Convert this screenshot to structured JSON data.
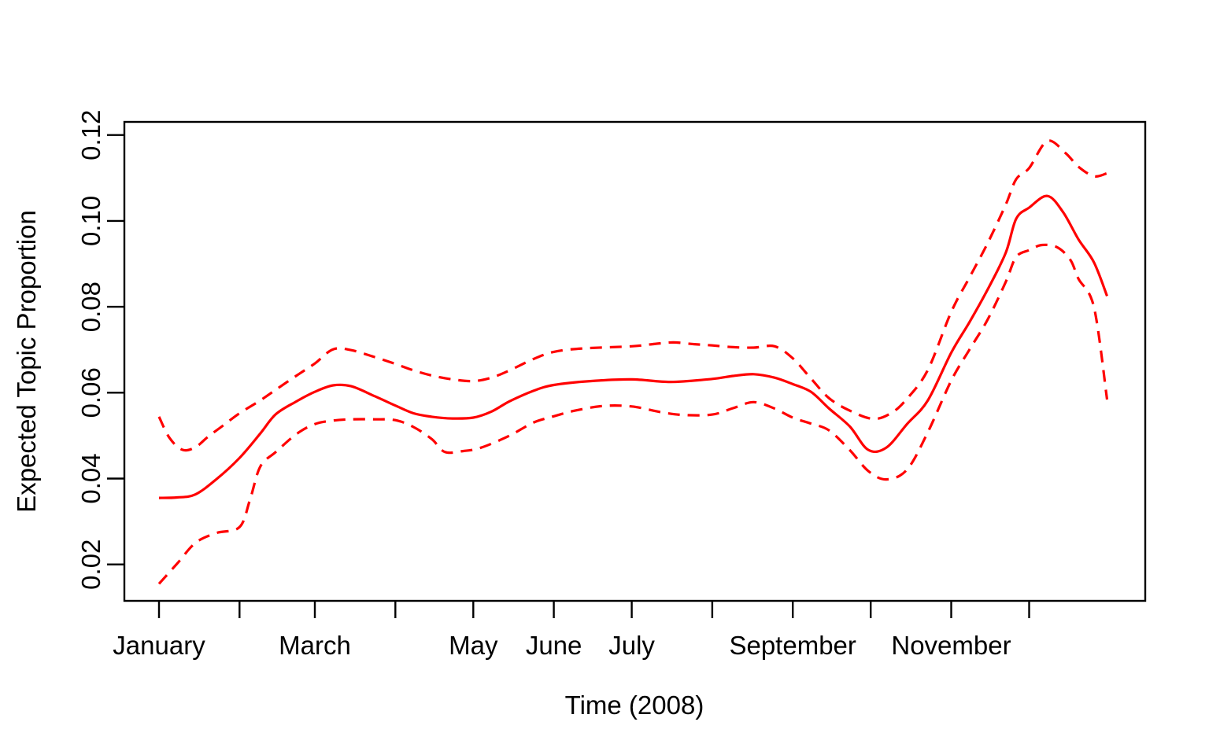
{
  "figure": {
    "background": "#ffffff",
    "axis_color": "#000000",
    "line_color": "#ff0000"
  },
  "chart_data": {
    "type": "line",
    "title": "",
    "xlabel": "Time (2008)",
    "ylabel": "Expected Topic Proportion",
    "x_unit": "day of year 2008",
    "x_range_days": [
      1,
      366
    ],
    "ylim": [
      0.0115,
      0.1227
    ],
    "grid": false,
    "legend": "none",
    "y_ticks": [
      0.02,
      0.04,
      0.06,
      0.08,
      0.1,
      0.12
    ],
    "y_tick_labels": [
      "0.02",
      "0.04",
      "0.06",
      "0.08",
      "0.10",
      "0.12"
    ],
    "x_ticks": [
      {
        "day": 1,
        "label": "January"
      },
      {
        "day": 32,
        "label": ""
      },
      {
        "day": 61,
        "label": "March"
      },
      {
        "day": 92,
        "label": ""
      },
      {
        "day": 122,
        "label": "May"
      },
      {
        "day": 153,
        "label": "June"
      },
      {
        "day": 183,
        "label": "July"
      },
      {
        "day": 214,
        "label": ""
      },
      {
        "day": 245,
        "label": "September"
      },
      {
        "day": 275,
        "label": ""
      },
      {
        "day": 306,
        "label": "November"
      },
      {
        "day": 336,
        "label": ""
      }
    ],
    "series": [
      {
        "name": "expected-topic-proportion-mean",
        "style": "solid",
        "color": "#ff0000",
        "points": [
          [
            1,
            0.0355
          ],
          [
            8,
            0.0356
          ],
          [
            15,
            0.0363
          ],
          [
            23,
            0.0398
          ],
          [
            32,
            0.0448
          ],
          [
            40,
            0.0505
          ],
          [
            46,
            0.055
          ],
          [
            54,
            0.058
          ],
          [
            61,
            0.0602
          ],
          [
            68,
            0.0617
          ],
          [
            75,
            0.0615
          ],
          [
            84,
            0.0592
          ],
          [
            92,
            0.057
          ],
          [
            99,
            0.0552
          ],
          [
            106,
            0.0544
          ],
          [
            114,
            0.054
          ],
          [
            122,
            0.0542
          ],
          [
            129,
            0.0556
          ],
          [
            136,
            0.058
          ],
          [
            145,
            0.0604
          ],
          [
            153,
            0.0618
          ],
          [
            167,
            0.0627
          ],
          [
            183,
            0.0631
          ],
          [
            198,
            0.0625
          ],
          [
            214,
            0.0632
          ],
          [
            222,
            0.0639
          ],
          [
            230,
            0.0643
          ],
          [
            238,
            0.0635
          ],
          [
            245,
            0.062
          ],
          [
            252,
            0.0602
          ],
          [
            259,
            0.0563
          ],
          [
            267,
            0.0521
          ],
          [
            274,
            0.0467
          ],
          [
            281,
            0.0472
          ],
          [
            289,
            0.0527
          ],
          [
            297,
            0.0582
          ],
          [
            306,
            0.0693
          ],
          [
            313,
            0.0764
          ],
          [
            320,
            0.084
          ],
          [
            327,
            0.0926
          ],
          [
            331,
            0.1005
          ],
          [
            336,
            0.1031
          ],
          [
            343,
            0.1058
          ],
          [
            349,
            0.1021
          ],
          [
            355,
            0.0957
          ],
          [
            361,
            0.0903
          ],
          [
            366,
            0.0825
          ]
        ]
      },
      {
        "name": "upper-confidence-band",
        "style": "dashed",
        "color": "#ff0000",
        "points": [
          [
            1,
            0.0544
          ],
          [
            5,
            0.0495
          ],
          [
            10,
            0.0467
          ],
          [
            15,
            0.0473
          ],
          [
            20,
            0.0498
          ],
          [
            26,
            0.0525
          ],
          [
            32,
            0.0552
          ],
          [
            40,
            0.0582
          ],
          [
            46,
            0.0607
          ],
          [
            54,
            0.064
          ],
          [
            61,
            0.0668
          ],
          [
            68,
            0.0701
          ],
          [
            75,
            0.0699
          ],
          [
            84,
            0.0683
          ],
          [
            92,
            0.0667
          ],
          [
            99,
            0.0652
          ],
          [
            106,
            0.064
          ],
          [
            114,
            0.0631
          ],
          [
            122,
            0.0627
          ],
          [
            129,
            0.0635
          ],
          [
            136,
            0.0652
          ],
          [
            145,
            0.0678
          ],
          [
            153,
            0.0695
          ],
          [
            164,
            0.0703
          ],
          [
            183,
            0.0708
          ],
          [
            191,
            0.0713
          ],
          [
            199,
            0.0717
          ],
          [
            207,
            0.0713
          ],
          [
            214,
            0.071
          ],
          [
            222,
            0.0706
          ],
          [
            230,
            0.0705
          ],
          [
            238,
            0.0708
          ],
          [
            245,
            0.068
          ],
          [
            252,
            0.0633
          ],
          [
            259,
            0.0587
          ],
          [
            267,
            0.0558
          ],
          [
            276,
            0.0539
          ],
          [
            283,
            0.0553
          ],
          [
            289,
            0.0586
          ],
          [
            297,
            0.0653
          ],
          [
            306,
            0.0788
          ],
          [
            313,
            0.0868
          ],
          [
            320,
            0.0948
          ],
          [
            327,
            0.1038
          ],
          [
            331,
            0.1097
          ],
          [
            336,
            0.1123
          ],
          [
            343,
            0.1186
          ],
          [
            350,
            0.1158
          ],
          [
            355,
            0.1126
          ],
          [
            361,
            0.1104
          ],
          [
            366,
            0.1111
          ]
        ]
      },
      {
        "name": "lower-confidence-band",
        "style": "dashed",
        "color": "#ff0000",
        "points": [
          [
            1,
            0.0155
          ],
          [
            8,
            0.0202
          ],
          [
            15,
            0.025
          ],
          [
            23,
            0.0273
          ],
          [
            32,
            0.0287
          ],
          [
            36,
            0.035
          ],
          [
            40,
            0.0428
          ],
          [
            46,
            0.0462
          ],
          [
            54,
            0.0504
          ],
          [
            61,
            0.0527
          ],
          [
            68,
            0.0535
          ],
          [
            75,
            0.0538
          ],
          [
            84,
            0.0538
          ],
          [
            92,
            0.0536
          ],
          [
            99,
            0.052
          ],
          [
            106,
            0.0492
          ],
          [
            111,
            0.0462
          ],
          [
            118,
            0.0464
          ],
          [
            125,
            0.0472
          ],
          [
            136,
            0.05
          ],
          [
            145,
            0.053
          ],
          [
            153,
            0.0545
          ],
          [
            161,
            0.0558
          ],
          [
            172,
            0.0569
          ],
          [
            183,
            0.0568
          ],
          [
            194,
            0.0555
          ],
          [
            203,
            0.0548
          ],
          [
            214,
            0.0549
          ],
          [
            222,
            0.0564
          ],
          [
            230,
            0.0578
          ],
          [
            238,
            0.0563
          ],
          [
            245,
            0.0542
          ],
          [
            252,
            0.0528
          ],
          [
            259,
            0.0512
          ],
          [
            267,
            0.0466
          ],
          [
            274,
            0.0418
          ],
          [
            281,
            0.0398
          ],
          [
            289,
            0.0421
          ],
          [
            297,
            0.0508
          ],
          [
            306,
            0.0628
          ],
          [
            313,
            0.07
          ],
          [
            320,
            0.077
          ],
          [
            327,
            0.0858
          ],
          [
            331,
            0.0916
          ],
          [
            336,
            0.0932
          ],
          [
            341,
            0.0944
          ],
          [
            347,
            0.0938
          ],
          [
            352,
            0.0908
          ],
          [
            355,
            0.0865
          ],
          [
            361,
            0.0798
          ],
          [
            366,
            0.0584
          ]
        ]
      }
    ]
  }
}
